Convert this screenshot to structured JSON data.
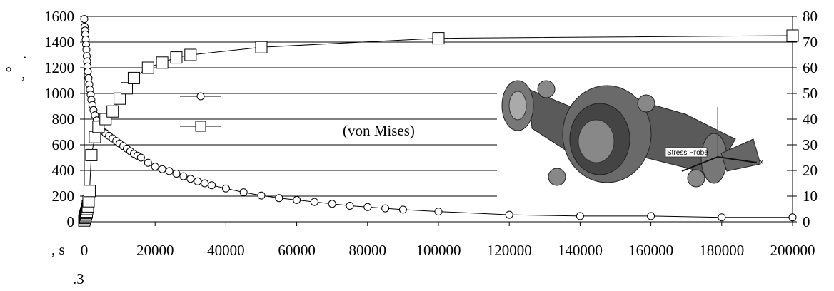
{
  "chart_data": {
    "type": "scatter",
    "grid": true,
    "x_ticks": [
      "0",
      "20000",
      "40000",
      "60000",
      "80000",
      "100000",
      "120000",
      "140000",
      "160000",
      "180000",
      "200000"
    ],
    "y_left_ticks": [
      "0",
      "200",
      "400",
      "600",
      "800",
      "1000",
      "1200",
      "1400",
      "1600"
    ],
    "y_right_ticks": [
      "0",
      "10",
      "20",
      "30",
      "40",
      "50",
      "60",
      "70",
      "80"
    ],
    "xlim": [
      0,
      200000
    ],
    "ylim_left": [
      0,
      1600
    ],
    "ylim_right": [
      0,
      80
    ],
    "legend_annotation": "(von Mises)",
    "stray_labels": {
      "x_axis": ", s",
      "y_axis_top": ".",
      "y_axis_mid": "°",
      "y_axis_low": ",",
      "figure": ".3"
    },
    "inset_label": "Stress Probe",
    "inset_axis_label": "x",
    "series": [
      {
        "axis": "left",
        "marker": "circle",
        "x": [
          0,
          100,
          200,
          300,
          400,
          500,
          600,
          700,
          800,
          900,
          1000,
          1200,
          1400,
          1600,
          1800,
          2000,
          2300,
          2600,
          3000,
          3500,
          4000,
          4500,
          5000,
          6000,
          7000,
          8000,
          9000,
          10000,
          11000,
          12000,
          13000,
          14000,
          15000,
          16000,
          18000,
          20000,
          22000,
          24000,
          26000,
          28000,
          30000,
          32000,
          34000,
          36000,
          40000,
          45000,
          50000,
          55000,
          60000,
          65000,
          70000,
          75000,
          80000,
          85000,
          90000,
          100000,
          120000,
          140000,
          160000,
          180000,
          200000
        ],
        "y": [
          1580,
          1520,
          1490,
          1460,
          1420,
          1380,
          1340,
          1290,
          1250,
          1210,
          1170,
          1120,
          1070,
          1030,
          990,
          950,
          910,
          870,
          830,
          790,
          760,
          730,
          710,
          690,
          670,
          650,
          630,
          610,
          590,
          570,
          550,
          530,
          515,
          500,
          460,
          430,
          410,
          395,
          375,
          355,
          335,
          315,
          300,
          285,
          260,
          230,
          205,
          185,
          170,
          155,
          140,
          125,
          115,
          105,
          95,
          80,
          55,
          45,
          45,
          35,
          35
        ]
      },
      {
        "axis": "right",
        "marker": "square",
        "x": [
          0,
          100,
          200,
          300,
          400,
          500,
          600,
          700,
          800,
          1000,
          1200,
          1500,
          2000,
          3000,
          4000,
          6000,
          8000,
          10000,
          12000,
          14000,
          18000,
          22000,
          26000,
          30000,
          50000,
          100000,
          200000
        ],
        "y": [
          0.5,
          1,
          1.5,
          2,
          2.5,
          3,
          3.5,
          4,
          5,
          6,
          8,
          12,
          26,
          33,
          37,
          40,
          43,
          48,
          52,
          56,
          60,
          62,
          64,
          65,
          68,
          71.5,
          72.5
        ]
      }
    ]
  }
}
